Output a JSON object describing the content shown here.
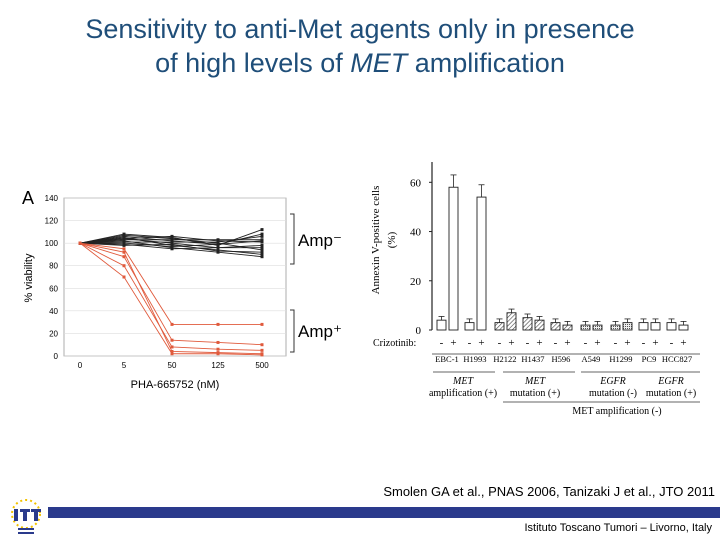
{
  "title": {
    "line1": "Sensitivity to anti-Met agents only in presence",
    "line2_pre": "of high levels of ",
    "line2_italic": "MET",
    "line2_post": " amplification"
  },
  "panel_a": {
    "panel_letter": "A",
    "ylabel": "% viability",
    "xlabel": "PHA-665752 (nM)",
    "yticks": [
      "0",
      "20",
      "40",
      "60",
      "80",
      "100",
      "120",
      "140"
    ],
    "xticks": [
      "0",
      "5",
      "50",
      "125",
      "500"
    ],
    "amp_neg_label": "Amp⁻",
    "amp_pos_label": "Amp⁺"
  },
  "panel_b": {
    "ylabel_line1": "Annexin V-positive cells",
    "ylabel_line2": "(%)",
    "yticks": [
      "0",
      "20",
      "40",
      "60"
    ],
    "treatment_label": "Crizotinib:",
    "signs": [
      "-",
      "+"
    ],
    "cell_lines": [
      "EBC-1",
      "H1993",
      "H2122",
      "H1437",
      "H596",
      "A549",
      "H1299",
      "PC9",
      "HCC827"
    ],
    "group1_line1": "MET",
    "group1_line2": "amplification (+)",
    "group2_line1": "MET",
    "group2_line2": "mutation (+)",
    "group3_line1": "EGFR",
    "group3_line2": "mutation (-)",
    "group4_line1": "EGFR",
    "group4_line2": "mutation (+)",
    "bottom_group": "MET amplification (-)"
  },
  "chart_data": [
    {
      "type": "line",
      "xlabel": "PHA-665752 (nM)",
      "ylabel": "% viability",
      "x": [
        0,
        5,
        50,
        125,
        500
      ],
      "ylim": [
        0,
        140
      ],
      "series_groups": [
        {
          "name": "Amp-",
          "color": "#222222",
          "count": 12,
          "approx_values": [
            100,
            102,
            100,
            98,
            100
          ]
        },
        {
          "name": "Amp+",
          "color": "#e05a3c",
          "count": 5,
          "approx_values": [
            100,
            90,
            10,
            8,
            5
          ]
        }
      ]
    },
    {
      "type": "bar",
      "ylabel": "Annexin V-positive cells (%)",
      "ylim": [
        0,
        65
      ],
      "categories": [
        "EBC-1",
        "H1993",
        "H2122",
        "H1437",
        "H596",
        "A549",
        "H1299",
        "PC9",
        "HCC827"
      ],
      "series": [
        {
          "name": "-",
          "values": [
            4,
            3,
            3,
            5,
            3,
            2,
            2,
            3,
            3
          ]
        },
        {
          "name": "+",
          "values": [
            58,
            54,
            7,
            4,
            2,
            2,
            3,
            3,
            2
          ]
        }
      ]
    }
  ],
  "citation": "Smolen GA et al., PNAS 2006, Tanizaki J et al., JTO 2011",
  "footer": "Istituto Toscano Tumori – Livorno, Italy",
  "colors": {
    "title": "#1f4e79",
    "footer_bar": "#2a3a8c",
    "amp_pos": "#e05a3c",
    "amp_neg": "#222222"
  }
}
